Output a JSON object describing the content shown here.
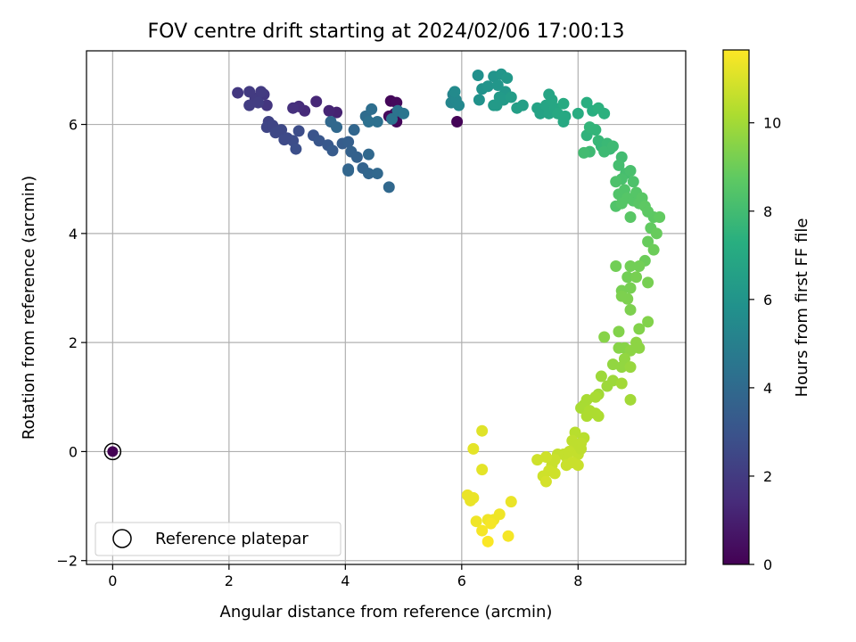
{
  "chart_data": {
    "type": "scatter",
    "title": "FOV centre drift starting at 2024/02/06 17:00:13",
    "xlabel": "Angular distance from reference (arcmin)",
    "ylabel": "Rotation from reference (arcmin)",
    "xlim": [
      -0.45,
      9.85
    ],
    "ylim": [
      -2.07,
      7.35
    ],
    "xticks": [
      0,
      2,
      4,
      6,
      8
    ],
    "yticks": [
      -2,
      0,
      2,
      4,
      6
    ],
    "xtick_labels": [
      "0",
      "2",
      "4",
      "6",
      "8"
    ],
    "ytick_labels": [
      "−2",
      "0",
      "2",
      "4",
      "6"
    ],
    "grid": true,
    "legend": {
      "placement": "lower-left",
      "entries": [
        {
          "label": "Reference platepar",
          "marker": "open-circle"
        }
      ]
    },
    "colorbar": {
      "label": "Hours from first FF file",
      "colormap": "viridis",
      "range": [
        0,
        11.65
      ],
      "ticks": [
        0,
        2,
        4,
        6,
        8,
        10
      ],
      "tick_labels": [
        "0",
        "2",
        "4",
        "6",
        "8",
        "10"
      ]
    },
    "reference_point": {
      "x": 0,
      "y": 0,
      "hours": 0
    },
    "points": [
      {
        "x": 4.78,
        "y": 6.43,
        "h": 0.2
      },
      {
        "x": 4.88,
        "y": 6.4,
        "h": 0.3
      },
      {
        "x": 4.85,
        "y": 6.2,
        "h": 0.25
      },
      {
        "x": 4.88,
        "y": 6.05,
        "h": 0.2
      },
      {
        "x": 4.75,
        "y": 6.15,
        "h": 0.3
      },
      {
        "x": 5.92,
        "y": 6.05,
        "h": 0.1
      },
      {
        "x": 3.85,
        "y": 6.22,
        "h": 1.1
      },
      {
        "x": 3.72,
        "y": 6.25,
        "h": 1.2
      },
      {
        "x": 3.5,
        "y": 6.42,
        "h": 1.3
      },
      {
        "x": 3.3,
        "y": 6.25,
        "h": 1.4
      },
      {
        "x": 3.2,
        "y": 6.33,
        "h": 1.5
      },
      {
        "x": 3.1,
        "y": 6.3,
        "h": 1.6
      },
      {
        "x": 2.65,
        "y": 6.35,
        "h": 1.8
      },
      {
        "x": 2.6,
        "y": 6.55,
        "h": 1.9
      },
      {
        "x": 2.45,
        "y": 6.48,
        "h": 2.0
      },
      {
        "x": 2.35,
        "y": 6.6,
        "h": 2.0
      },
      {
        "x": 2.15,
        "y": 6.58,
        "h": 1.9
      },
      {
        "x": 2.35,
        "y": 6.35,
        "h": 2.1
      },
      {
        "x": 2.55,
        "y": 6.6,
        "h": 2.0
      },
      {
        "x": 2.5,
        "y": 6.4,
        "h": 2.1
      },
      {
        "x": 2.68,
        "y": 6.05,
        "h": 2.3
      },
      {
        "x": 2.65,
        "y": 5.95,
        "h": 2.4
      },
      {
        "x": 2.75,
        "y": 5.98,
        "h": 2.4
      },
      {
        "x": 2.8,
        "y": 5.85,
        "h": 2.5
      },
      {
        "x": 2.9,
        "y": 5.9,
        "h": 2.5
      },
      {
        "x": 3.0,
        "y": 5.75,
        "h": 2.6
      },
      {
        "x": 3.1,
        "y": 5.7,
        "h": 2.7
      },
      {
        "x": 3.15,
        "y": 5.55,
        "h": 2.8
      },
      {
        "x": 2.95,
        "y": 5.72,
        "h": 2.6
      },
      {
        "x": 3.2,
        "y": 5.88,
        "h": 2.7
      },
      {
        "x": 3.45,
        "y": 5.8,
        "h": 3.0
      },
      {
        "x": 3.55,
        "y": 5.7,
        "h": 3.1
      },
      {
        "x": 3.7,
        "y": 5.62,
        "h": 3.2
      },
      {
        "x": 3.78,
        "y": 5.52,
        "h": 3.3
      },
      {
        "x": 3.95,
        "y": 5.65,
        "h": 3.4
      },
      {
        "x": 4.05,
        "y": 5.68,
        "h": 3.5
      },
      {
        "x": 4.1,
        "y": 5.5,
        "h": 3.6
      },
      {
        "x": 4.2,
        "y": 5.4,
        "h": 3.6
      },
      {
        "x": 4.3,
        "y": 5.2,
        "h": 3.7
      },
      {
        "x": 4.05,
        "y": 5.18,
        "h": 3.7
      },
      {
        "x": 4.05,
        "y": 5.15,
        "h": 3.8
      },
      {
        "x": 4.4,
        "y": 5.1,
        "h": 3.8
      },
      {
        "x": 4.4,
        "y": 5.45,
        "h": 3.9
      },
      {
        "x": 4.55,
        "y": 5.1,
        "h": 3.9
      },
      {
        "x": 4.75,
        "y": 4.85,
        "h": 3.9
      },
      {
        "x": 4.15,
        "y": 5.9,
        "h": 3.8
      },
      {
        "x": 3.75,
        "y": 6.05,
        "h": 3.9
      },
      {
        "x": 3.85,
        "y": 5.95,
        "h": 3.9
      },
      {
        "x": 4.35,
        "y": 6.15,
        "h": 4.1
      },
      {
        "x": 4.45,
        "y": 6.28,
        "h": 4.2
      },
      {
        "x": 4.55,
        "y": 6.05,
        "h": 4.3
      },
      {
        "x": 4.4,
        "y": 6.05,
        "h": 4.3
      },
      {
        "x": 4.8,
        "y": 6.1,
        "h": 4.4
      },
      {
        "x": 4.9,
        "y": 6.25,
        "h": 4.4
      },
      {
        "x": 5.0,
        "y": 6.2,
        "h": 4.5
      },
      {
        "x": 5.85,
        "y": 6.55,
        "h": 5.2
      },
      {
        "x": 5.82,
        "y": 6.4,
        "h": 5.3
      },
      {
        "x": 5.9,
        "y": 6.45,
        "h": 5.4
      },
      {
        "x": 5.95,
        "y": 6.35,
        "h": 5.4
      },
      {
        "x": 5.88,
        "y": 6.6,
        "h": 5.5
      },
      {
        "x": 6.28,
        "y": 6.9,
        "h": 5.8
      },
      {
        "x": 6.35,
        "y": 6.65,
        "h": 5.9
      },
      {
        "x": 6.3,
        "y": 6.45,
        "h": 5.9
      },
      {
        "x": 6.45,
        "y": 6.7,
        "h": 6.0
      },
      {
        "x": 6.55,
        "y": 6.88,
        "h": 6.0
      },
      {
        "x": 6.62,
        "y": 6.72,
        "h": 6.1
      },
      {
        "x": 6.68,
        "y": 6.92,
        "h": 6.1
      },
      {
        "x": 6.75,
        "y": 6.6,
        "h": 6.2
      },
      {
        "x": 6.78,
        "y": 6.85,
        "h": 6.2
      },
      {
        "x": 6.55,
        "y": 6.35,
        "h": 6.3
      },
      {
        "x": 6.65,
        "y": 6.5,
        "h": 6.3
      },
      {
        "x": 6.72,
        "y": 6.45,
        "h": 6.3
      },
      {
        "x": 6.85,
        "y": 6.5,
        "h": 6.4
      },
      {
        "x": 6.95,
        "y": 6.3,
        "h": 6.5
      },
      {
        "x": 7.05,
        "y": 6.35,
        "h": 6.5
      },
      {
        "x": 6.6,
        "y": 6.35,
        "h": 6.3
      },
      {
        "x": 7.3,
        "y": 6.3,
        "h": 6.7
      },
      {
        "x": 7.35,
        "y": 6.2,
        "h": 6.7
      },
      {
        "x": 7.45,
        "y": 6.35,
        "h": 6.8
      },
      {
        "x": 7.5,
        "y": 6.2,
        "h": 6.8
      },
      {
        "x": 7.55,
        "y": 6.45,
        "h": 6.9
      },
      {
        "x": 7.6,
        "y": 6.3,
        "h": 6.9
      },
      {
        "x": 7.65,
        "y": 6.2,
        "h": 7.0
      },
      {
        "x": 7.75,
        "y": 6.05,
        "h": 7.0
      },
      {
        "x": 7.78,
        "y": 6.15,
        "h": 7.0
      },
      {
        "x": 7.75,
        "y": 6.38,
        "h": 7.1
      },
      {
        "x": 7.5,
        "y": 6.55,
        "h": 6.8
      },
      {
        "x": 8.0,
        "y": 6.2,
        "h": 7.2
      },
      {
        "x": 8.15,
        "y": 6.4,
        "h": 7.3
      },
      {
        "x": 8.25,
        "y": 6.25,
        "h": 7.3
      },
      {
        "x": 8.35,
        "y": 6.3,
        "h": 7.4
      },
      {
        "x": 8.45,
        "y": 6.2,
        "h": 7.4
      },
      {
        "x": 8.15,
        "y": 5.8,
        "h": 7.5
      },
      {
        "x": 8.2,
        "y": 5.95,
        "h": 7.6
      },
      {
        "x": 8.3,
        "y": 5.9,
        "h": 7.6
      },
      {
        "x": 8.35,
        "y": 5.7,
        "h": 7.7
      },
      {
        "x": 8.4,
        "y": 5.6,
        "h": 7.7
      },
      {
        "x": 8.5,
        "y": 5.65,
        "h": 7.8
      },
      {
        "x": 8.55,
        "y": 5.55,
        "h": 7.8
      },
      {
        "x": 8.45,
        "y": 5.5,
        "h": 7.9
      },
      {
        "x": 8.2,
        "y": 5.5,
        "h": 7.9
      },
      {
        "x": 8.1,
        "y": 5.48,
        "h": 8.0
      },
      {
        "x": 8.6,
        "y": 5.6,
        "h": 7.9
      },
      {
        "x": 8.75,
        "y": 5.4,
        "h": 8.0
      },
      {
        "x": 8.7,
        "y": 5.25,
        "h": 8.1
      },
      {
        "x": 8.82,
        "y": 5.1,
        "h": 8.1
      },
      {
        "x": 8.75,
        "y": 5.0,
        "h": 8.2
      },
      {
        "x": 8.9,
        "y": 5.15,
        "h": 8.2
      },
      {
        "x": 8.95,
        "y": 4.95,
        "h": 8.3
      },
      {
        "x": 8.65,
        "y": 4.95,
        "h": 8.3
      },
      {
        "x": 8.7,
        "y": 4.72,
        "h": 8.4
      },
      {
        "x": 8.65,
        "y": 4.5,
        "h": 8.4
      },
      {
        "x": 8.8,
        "y": 4.8,
        "h": 8.4
      },
      {
        "x": 8.85,
        "y": 4.65,
        "h": 8.5
      },
      {
        "x": 8.95,
        "y": 4.6,
        "h": 8.5
      },
      {
        "x": 9.0,
        "y": 4.75,
        "h": 8.5
      },
      {
        "x": 9.05,
        "y": 4.55,
        "h": 8.6
      },
      {
        "x": 9.1,
        "y": 4.65,
        "h": 8.6
      },
      {
        "x": 9.15,
        "y": 4.5,
        "h": 8.7
      },
      {
        "x": 9.2,
        "y": 4.4,
        "h": 8.7
      },
      {
        "x": 9.3,
        "y": 4.3,
        "h": 8.7
      },
      {
        "x": 8.9,
        "y": 4.3,
        "h": 8.6
      },
      {
        "x": 8.75,
        "y": 4.55,
        "h": 8.5
      },
      {
        "x": 9.4,
        "y": 4.3,
        "h": 8.8
      },
      {
        "x": 9.25,
        "y": 4.1,
        "h": 8.8
      },
      {
        "x": 9.35,
        "y": 4.0,
        "h": 8.9
      },
      {
        "x": 9.2,
        "y": 3.85,
        "h": 8.9
      },
      {
        "x": 9.3,
        "y": 3.7,
        "h": 9.0
      },
      {
        "x": 9.15,
        "y": 3.5,
        "h": 9.0
      },
      {
        "x": 8.65,
        "y": 3.4,
        "h": 9.1
      },
      {
        "x": 8.9,
        "y": 3.4,
        "h": 9.1
      },
      {
        "x": 8.85,
        "y": 3.2,
        "h": 9.1
      },
      {
        "x": 9.05,
        "y": 3.4,
        "h": 9.1
      },
      {
        "x": 9.0,
        "y": 3.2,
        "h": 9.2
      },
      {
        "x": 8.75,
        "y": 2.95,
        "h": 9.2
      },
      {
        "x": 8.9,
        "y": 3.0,
        "h": 9.2
      },
      {
        "x": 8.85,
        "y": 2.8,
        "h": 9.3
      },
      {
        "x": 8.75,
        "y": 2.85,
        "h": 9.3
      },
      {
        "x": 8.9,
        "y": 2.6,
        "h": 9.3
      },
      {
        "x": 9.2,
        "y": 3.1,
        "h": 9.2
      },
      {
        "x": 9.2,
        "y": 2.38,
        "h": 9.4
      },
      {
        "x": 9.05,
        "y": 2.25,
        "h": 9.4
      },
      {
        "x": 8.7,
        "y": 2.2,
        "h": 9.4
      },
      {
        "x": 8.45,
        "y": 2.1,
        "h": 9.5
      },
      {
        "x": 8.7,
        "y": 1.9,
        "h": 9.5
      },
      {
        "x": 8.8,
        "y": 1.9,
        "h": 9.5
      },
      {
        "x": 8.9,
        "y": 1.85,
        "h": 9.6
      },
      {
        "x": 9.0,
        "y": 2.0,
        "h": 9.6
      },
      {
        "x": 9.05,
        "y": 1.9,
        "h": 9.6
      },
      {
        "x": 8.8,
        "y": 1.7,
        "h": 9.7
      },
      {
        "x": 8.6,
        "y": 1.6,
        "h": 9.7
      },
      {
        "x": 8.75,
        "y": 1.55,
        "h": 9.7
      },
      {
        "x": 8.9,
        "y": 1.55,
        "h": 9.8
      },
      {
        "x": 8.4,
        "y": 1.38,
        "h": 9.9
      },
      {
        "x": 8.5,
        "y": 1.2,
        "h": 9.9
      },
      {
        "x": 8.6,
        "y": 1.3,
        "h": 9.9
      },
      {
        "x": 8.75,
        "y": 1.25,
        "h": 10.0
      },
      {
        "x": 8.35,
        "y": 1.05,
        "h": 10.0
      },
      {
        "x": 8.3,
        "y": 1.0,
        "h": 10.1
      },
      {
        "x": 8.15,
        "y": 0.95,
        "h": 10.1
      },
      {
        "x": 8.1,
        "y": 0.85,
        "h": 10.1
      },
      {
        "x": 8.05,
        "y": 0.8,
        "h": 10.1
      },
      {
        "x": 8.2,
        "y": 0.75,
        "h": 10.2
      },
      {
        "x": 8.3,
        "y": 0.7,
        "h": 10.2
      },
      {
        "x": 8.15,
        "y": 0.65,
        "h": 10.2
      },
      {
        "x": 8.35,
        "y": 0.65,
        "h": 10.2
      },
      {
        "x": 8.9,
        "y": 0.95,
        "h": 10.0
      },
      {
        "x": 8.1,
        "y": 0.25,
        "h": 10.4
      },
      {
        "x": 7.95,
        "y": 0.35,
        "h": 10.4
      },
      {
        "x": 7.9,
        "y": 0.2,
        "h": 10.5
      },
      {
        "x": 8.05,
        "y": 0.15,
        "h": 10.5
      },
      {
        "x": 7.95,
        "y": 0.1,
        "h": 10.5
      },
      {
        "x": 7.85,
        "y": 0.0,
        "h": 10.6
      },
      {
        "x": 7.75,
        "y": -0.05,
        "h": 10.6
      },
      {
        "x": 7.8,
        "y": -0.1,
        "h": 10.6
      },
      {
        "x": 7.65,
        "y": -0.05,
        "h": 10.6
      },
      {
        "x": 7.6,
        "y": -0.15,
        "h": 10.7
      },
      {
        "x": 8.0,
        "y": -0.05,
        "h": 10.6
      },
      {
        "x": 8.05,
        "y": 0.05,
        "h": 10.5
      },
      {
        "x": 8.0,
        "y": -0.25,
        "h": 10.7
      },
      {
        "x": 7.8,
        "y": -0.25,
        "h": 10.7
      },
      {
        "x": 7.55,
        "y": -0.25,
        "h": 10.7
      },
      {
        "x": 7.5,
        "y": -0.35,
        "h": 10.8
      },
      {
        "x": 7.45,
        "y": -0.1,
        "h": 10.8
      },
      {
        "x": 7.3,
        "y": -0.15,
        "h": 10.8
      },
      {
        "x": 7.4,
        "y": -0.45,
        "h": 10.8
      },
      {
        "x": 7.6,
        "y": -0.4,
        "h": 10.8
      },
      {
        "x": 7.45,
        "y": -0.55,
        "h": 10.9
      },
      {
        "x": 7.9,
        "y": -0.2,
        "h": 10.7
      },
      {
        "x": 6.35,
        "y": 0.38,
        "h": 11.1
      },
      {
        "x": 6.2,
        "y": 0.05,
        "h": 11.2
      },
      {
        "x": 6.35,
        "y": -0.33,
        "h": 11.2
      },
      {
        "x": 6.1,
        "y": -0.8,
        "h": 11.3
      },
      {
        "x": 6.2,
        "y": -0.85,
        "h": 11.3
      },
      {
        "x": 6.15,
        "y": -0.9,
        "h": 11.3
      },
      {
        "x": 6.85,
        "y": -0.92,
        "h": 11.3
      },
      {
        "x": 6.65,
        "y": -1.15,
        "h": 11.4
      },
      {
        "x": 6.55,
        "y": -1.25,
        "h": 11.4
      },
      {
        "x": 6.45,
        "y": -1.25,
        "h": 11.4
      },
      {
        "x": 6.25,
        "y": -1.28,
        "h": 11.4
      },
      {
        "x": 6.5,
        "y": -1.32,
        "h": 11.5
      },
      {
        "x": 6.35,
        "y": -1.45,
        "h": 11.5
      },
      {
        "x": 6.8,
        "y": -1.55,
        "h": 11.5
      },
      {
        "x": 6.45,
        "y": -1.65,
        "h": 11.6
      }
    ]
  }
}
